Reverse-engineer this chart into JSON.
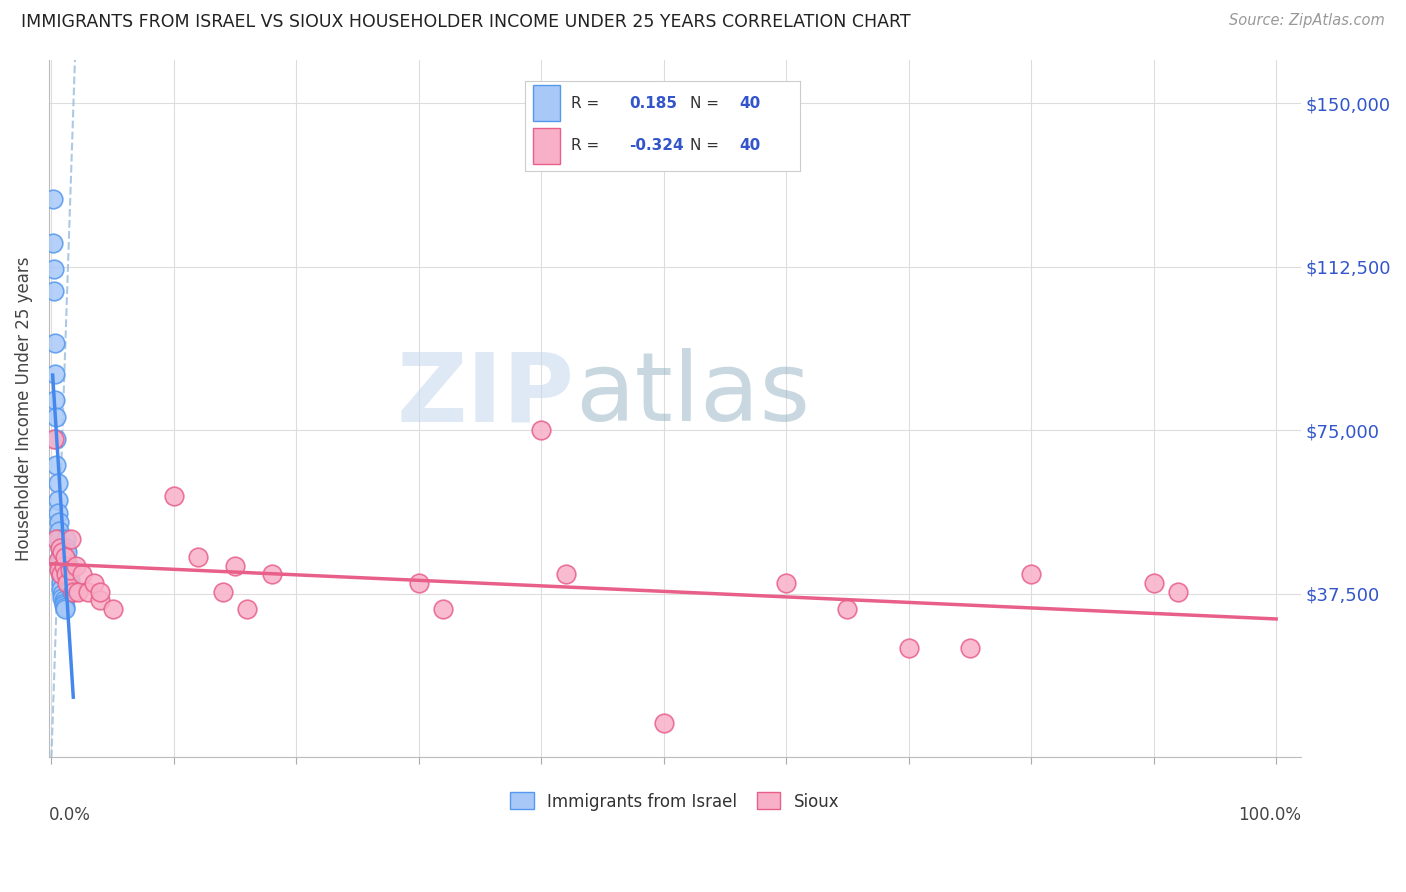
{
  "title": "IMMIGRANTS FROM ISRAEL VS SIOUX HOUSEHOLDER INCOME UNDER 25 YEARS CORRELATION CHART",
  "source": "Source: ZipAtlas.com",
  "ylabel": "Householder Income Under 25 years",
  "r_israel": 0.185,
  "n_israel": 40,
  "r_sioux": -0.324,
  "n_sioux": 40,
  "color_israel_fill": "#a8c8f8",
  "color_israel_edge": "#5599ee",
  "color_sioux_fill": "#f8b0c8",
  "color_sioux_edge": "#e8608a",
  "color_israel_line": "#4488ee",
  "color_sioux_line": "#e8608a",
  "color_dashed": "#99bbdd",
  "color_ytick": "#3355cc",
  "color_grid": "#dddddd",
  "background_color": "#ffffff",
  "watermark_zip": "ZIP",
  "watermark_atlas": "atlas",
  "israel_x": [
    0.001,
    0.001,
    0.002,
    0.002,
    0.003,
    0.003,
    0.003,
    0.004,
    0.004,
    0.004,
    0.005,
    0.005,
    0.005,
    0.006,
    0.006,
    0.006,
    0.007,
    0.007,
    0.007,
    0.007,
    0.008,
    0.008,
    0.008,
    0.009,
    0.009,
    0.01,
    0.01,
    0.01,
    0.011,
    0.011,
    0.012,
    0.012,
    0.013,
    0.013,
    0.014,
    0.014,
    0.015,
    0.015,
    0.016,
    0.017
  ],
  "israel_y": [
    128000,
    118000,
    112000,
    107000,
    95000,
    88000,
    82000,
    78000,
    73000,
    67000,
    63000,
    59000,
    56000,
    54000,
    52000,
    50000,
    48000,
    46000,
    44500,
    43000,
    41500,
    40000,
    38500,
    37500,
    36500,
    36000,
    35500,
    35000,
    34500,
    34000,
    50000,
    48000,
    47000,
    45000,
    43500,
    42000,
    41000,
    40000,
    39000,
    38000
  ],
  "sioux_x": [
    0.002,
    0.004,
    0.005,
    0.006,
    0.007,
    0.008,
    0.009,
    0.01,
    0.011,
    0.012,
    0.013,
    0.015,
    0.016,
    0.018,
    0.02,
    0.022,
    0.025,
    0.03,
    0.035,
    0.04,
    0.04,
    0.05,
    0.1,
    0.12,
    0.14,
    0.15,
    0.16,
    0.18,
    0.3,
    0.32,
    0.4,
    0.42,
    0.5,
    0.6,
    0.65,
    0.7,
    0.75,
    0.8,
    0.9,
    0.92
  ],
  "sioux_y": [
    73000,
    50000,
    45000,
    43000,
    48000,
    42000,
    47000,
    44000,
    46000,
    42000,
    40000,
    43000,
    50000,
    38000,
    44000,
    38000,
    42000,
    38000,
    40000,
    36000,
    38000,
    34000,
    60000,
    46000,
    38000,
    44000,
    34000,
    42000,
    40000,
    34000,
    75000,
    42000,
    8000,
    40000,
    34000,
    25000,
    25000,
    42000,
    40000,
    38000
  ],
  "ylim_min": 0,
  "ylim_max": 160000,
  "xlim_min": -0.002,
  "xlim_max": 1.02,
  "ytick_vals": [
    0,
    37500,
    75000,
    112500,
    150000
  ],
  "ytick_labels": [
    "",
    "$37,500",
    "$75,000",
    "$112,500",
    "$150,000"
  ],
  "xtick_vals": [
    0,
    0.1,
    0.2,
    0.3,
    0.4,
    0.5,
    0.6,
    0.7,
    0.8,
    0.9,
    1.0
  ]
}
